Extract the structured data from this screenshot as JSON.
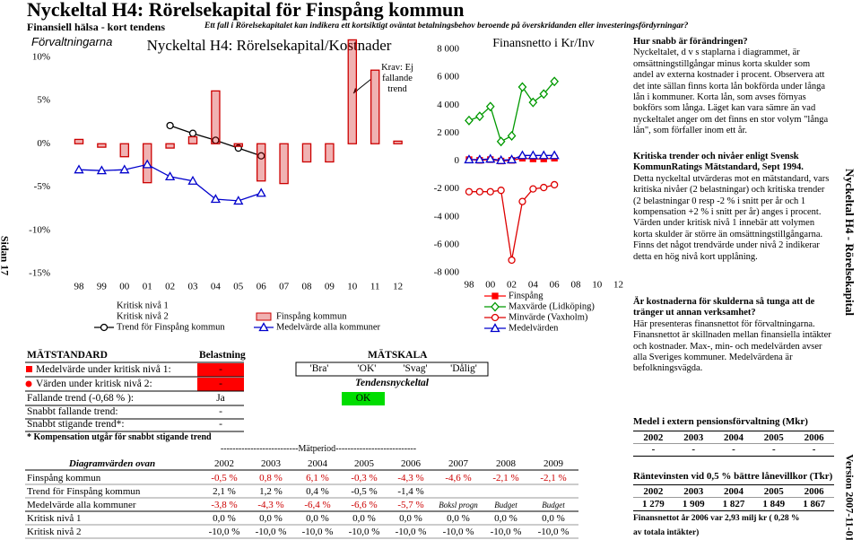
{
  "header": {
    "title": "Nyckeltal H4: Rörelsekapital för Finspång kommun",
    "subtitle": "Finansiell hälsa - kort tendens",
    "note": "Ett fall i Rörelsekapitalet kan indikera ett kortsiktigt oväntat betalningsbehov beroende på överskridanden eller investeringsfördyrningar?"
  },
  "page_label": "Sidan 17",
  "side_title": "Nyckeltal H4 - Rörelsekapital",
  "version": "Version 2007-11-01",
  "chart_data": [
    {
      "type": "bar",
      "section_label": "Förvaltningarna",
      "title": "Nyckeltal H4: Rörelsekapital/Kostnader",
      "annotation": "Krav: Ej fallande trend",
      "categories": [
        "98",
        "99",
        "00",
        "01",
        "02",
        "03",
        "04",
        "05",
        "06",
        "07",
        "08",
        "09",
        "10",
        "11",
        "12"
      ],
      "ylim": [
        -15,
        12.5
      ],
      "yticks": [
        {
          "value": 10,
          "label": "10%"
        },
        {
          "value": 5,
          "label": "5%"
        },
        {
          "value": 0,
          "label": "0%"
        },
        {
          "value": -5,
          "label": "-5%"
        },
        {
          "value": -10,
          "label": "-10%"
        },
        {
          "value": -15,
          "label": "-15%"
        }
      ],
      "series": [
        {
          "name": "Kritisk nivå 1",
          "type": "line",
          "values": [
            null,
            null,
            null,
            null,
            null,
            null,
            null,
            null,
            null,
            null,
            null,
            null,
            null,
            null,
            null
          ]
        },
        {
          "name": "Kritisk nivå 2",
          "type": "line",
          "values": [
            null,
            null,
            null,
            null,
            null,
            null,
            null,
            null,
            null,
            null,
            null,
            null,
            null,
            null,
            null
          ]
        },
        {
          "name": "Trend för Finspång kommun",
          "type": "line",
          "marker": "circle",
          "color": "#000000",
          "values": [
            null,
            null,
            null,
            null,
            2.1,
            1.2,
            0.4,
            -0.5,
            -1.4,
            null,
            null,
            null,
            null,
            null,
            null
          ]
        },
        {
          "name": "Finspång kommun",
          "type": "bar",
          "color": "#cc0000",
          "values": [
            0.5,
            -0.4,
            -1.5,
            -4.5,
            -0.5,
            0.8,
            6.1,
            -0.3,
            -4.3,
            -4.6,
            -2.1,
            -2.1,
            12.0,
            8.5,
            0.3
          ]
        },
        {
          "name": "Medelvärde alla kommuner",
          "type": "line",
          "marker": "triangle",
          "color": "#0000cc",
          "values": [
            -3.0,
            -3.1,
            -3.0,
            -2.4,
            -3.8,
            -4.3,
            -6.4,
            -6.6,
            -5.7,
            null,
            null,
            null,
            null,
            null,
            null
          ]
        }
      ]
    },
    {
      "type": "line",
      "title": "Finansnetto i Kr/Inv",
      "categories": [
        "98",
        null,
        "00",
        null,
        "02",
        null,
        "04",
        null,
        "06",
        null,
        "08",
        null,
        "10",
        null,
        "12"
      ],
      "ylim": [
        -8000,
        8000
      ],
      "yticks": [
        {
          "value": 8000,
          "label": "8 000"
        },
        {
          "value": 6000,
          "label": "6 000"
        },
        {
          "value": 4000,
          "label": "4 000"
        },
        {
          "value": 2000,
          "label": "2 000"
        },
        0,
        {
          "value": -2000,
          "label": "-2 000"
        },
        {
          "value": -4000,
          "label": "-4 000"
        },
        {
          "value": -6000,
          "label": "-6 000"
        },
        {
          "value": -8000,
          "label": "-8 000"
        }
      ],
      "series": [
        {
          "name": "Finspång",
          "marker": "square",
          "color": "#ff0000",
          "values": [
            100,
            50,
            100,
            0,
            50,
            200,
            150,
            150,
            200,
            null,
            null,
            null,
            null,
            null,
            null
          ]
        },
        {
          "name": "Maxvärde (Lidköping)",
          "marker": "diamond",
          "color": "#009900",
          "values": [
            2900,
            3200,
            3900,
            1400,
            1800,
            5300,
            4200,
            4800,
            5700,
            null,
            null,
            null,
            null,
            null,
            null
          ]
        },
        {
          "name": "Minvärde (Vaxholm)",
          "marker": "circle",
          "color": "#dd0000",
          "values": [
            -2200,
            -2200,
            -2200,
            -2100,
            -7100,
            -2900,
            -2000,
            -1900,
            -1700,
            null,
            null,
            null,
            null,
            null,
            null
          ]
        },
        {
          "name": "Medelvärden",
          "marker": "triangle",
          "color": "#0000cc",
          "values": [
            100,
            100,
            150,
            50,
            100,
            400,
            400,
            400,
            400,
            null,
            null,
            null,
            null,
            null,
            null
          ]
        }
      ]
    }
  ],
  "matstandard": {
    "title": "MÄTSTANDARD",
    "load_header": "Belastning",
    "scale_header": "MÄTSKALA",
    "rows": [
      {
        "label": "Medelvärde under kritisk nivå 1:",
        "value": "-"
      },
      {
        "label": "Värden under kritisk nivå 2:",
        "value": "-"
      },
      {
        "label": "Fallande trend (-0,68 % ):",
        "value": "Ja"
      },
      {
        "label": "Snabbt fallande trend:",
        "value": "-"
      },
      {
        "label": "Snabbt stigande trend*:",
        "value": "-"
      }
    ],
    "scale": [
      "'Bra'",
      "'OK'",
      "'Svag'",
      "'Dålig'"
    ],
    "tendens_title": "Tendensnyckeltal",
    "tendens_value": "OK",
    "footnote": "* Kompensation utgår för snabbt stigande trend"
  },
  "period_table": {
    "period_label": "--------------------------Mätperiod---------------------------",
    "header": [
      "Diagramvärden ovan",
      "2002",
      "2003",
      "2004",
      "2005",
      "2006",
      "2007",
      "2008",
      "2009"
    ],
    "rows": [
      [
        "Finspång kommun",
        "-0,5 %",
        "0,8 %",
        "6,1 %",
        "-0,3 %",
        "-4,3 %",
        "-4,6 %",
        "-2,1 %",
        "-2,1 %"
      ],
      [
        "Trend för Finspång kommun",
        "2,1 %",
        "1,2 %",
        "0,4 %",
        "-0,5 %",
        "-1,4 %"
      ],
      [
        "Medelvärde alla kommuner",
        "-3,8 %",
        "-4,3 %",
        "-6,4 %",
        "-6,6 %",
        "-5,7 %",
        "Boksl progn",
        "Budget",
        "Budget"
      ],
      [
        "Kritisk nivå 1",
        "0,0 %",
        "0,0 %",
        "0,0 %",
        "0,0 %",
        "0,0 %",
        "0,0 %",
        "0,0 %",
        "0,0 %"
      ],
      [
        "Kritisk nivå 2",
        "-10,0 %",
        "-10,0 %",
        "-10,0 %",
        "-10,0 %",
        "-10,0 %",
        "-10,0 %",
        "-10,0 %",
        "-10,0 %"
      ]
    ]
  },
  "sidebar": {
    "sections": [
      {
        "heading": "Hur snabb är förändringen?",
        "text": "Nyckeltalet, d v s staplarna i diagrammet, är omsättningstillgångar minus korta skulder som andel av externa kostnader i procent. Observera att det inte sällan finns korta lån bokförda under långa lån i kommuner. Korta lån, som avses förnyas bokförs som långa. Läget kan vara sämre än vad nyckeltalet anger om det finns en stor volym \"långa lån\", som förfaller inom ett år."
      },
      {
        "heading": "Kritiska trender och nivåer enligt Svensk KommunRatings Mätstandard, Sept 1994.",
        "text": "Detta nyckeltal utvärderas mot en mätstandard, vars kritiska nivåer (2 belastningar) och kritiska trender (2 belastningar 0 resp -2 % i snitt per år och 1 kompensation +2 % i snitt per år) anges i procent. Värden under kritisk nivå 1 innebär att volymen korta skulder är större än omsättningstillgångarna. Finns det något trendvärde under nivå 2 indikerar detta en hög nivå kort upplåning."
      },
      {
        "heading": "Är kostnaderna för skulderna så tunga att de tränger ut annan verksamhet?",
        "text": "Här presenteras finansnettot för förvaltningarna. Finansnettot är skillnaden mellan finansiella intäkter och kostnader. Max-, min- och medelvärden avser alla Sveriges kommuner. Medelvärdena är befolkningsvägda."
      }
    ],
    "tables": [
      {
        "title": "Medel i extern pensionsförvaltning (Mkr)",
        "header": [
          "2002",
          "2003",
          "2004",
          "2005",
          "2006"
        ],
        "values": [
          "-",
          "-",
          "-",
          "-",
          "-"
        ]
      },
      {
        "title": "Räntevinsten vid 0,5 % bättre lånevillkor (Tkr)",
        "header": [
          "2002",
          "2003",
          "2004",
          "2005",
          "2006"
        ],
        "values": [
          "1 279",
          "1 909",
          "1 827",
          "1 849",
          "1 867"
        ]
      }
    ],
    "notes": [
      "Finansnettot år 2006 var 2,93 milj kr ( 0,28 %",
      "av totala intäkter)"
    ]
  }
}
